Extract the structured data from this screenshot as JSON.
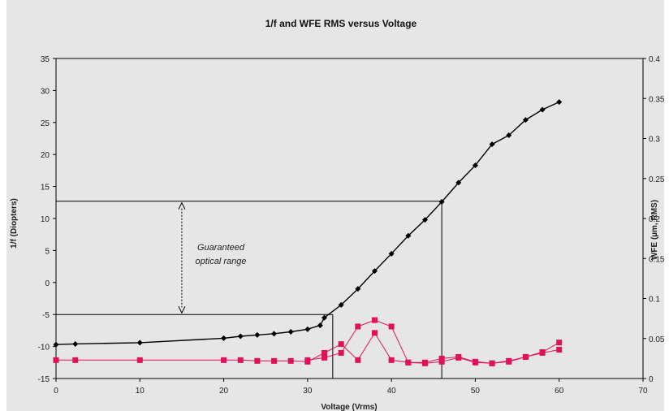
{
  "chart_data": {
    "type": "line",
    "title": "1/f and WFE RMS versus Voltage",
    "xlabel": "Voltage (Vrms)",
    "ylabel_left": "1/f (Diopters)",
    "ylabel_right": "WFE (µm, RMS)",
    "xlim": [
      0,
      70
    ],
    "ylim_left": [
      -15,
      35
    ],
    "ylim_right": [
      0,
      0.4
    ],
    "x_ticks": [
      0,
      10,
      20,
      30,
      40,
      50,
      60,
      70
    ],
    "y_left_ticks": [
      -15,
      -10,
      -5,
      0,
      5,
      10,
      15,
      20,
      25,
      30,
      35
    ],
    "y_right_ticks": [
      0,
      0.05,
      0.1,
      0.15,
      0.2,
      0.25,
      0.3,
      0.35,
      0.4
    ],
    "grid": false,
    "background": "#e6e6e6",
    "series": [
      {
        "axis": "left",
        "color": "#000000",
        "marker": "diamond",
        "x": [
          0,
          2.3,
          10,
          20,
          22,
          24,
          26,
          28,
          30,
          31.5,
          32,
          34,
          36,
          38,
          40,
          42,
          44,
          46,
          48,
          50,
          52,
          54,
          56,
          58,
          60
        ],
        "y": [
          -9.7,
          -9.6,
          -9.4,
          -8.7,
          -8.4,
          -8.2,
          -8.0,
          -7.7,
          -7.3,
          -6.7,
          -5.5,
          -3.5,
          -1.0,
          1.8,
          4.5,
          7.3,
          9.8,
          12.6,
          15.6,
          18.3,
          21.6,
          23.0,
          25.4,
          27.0,
          28.2
        ]
      },
      {
        "axis": "right",
        "color": "#e0105a",
        "marker": "square",
        "x": [
          0,
          2.3,
          10,
          20,
          22,
          24,
          26,
          28,
          30,
          32,
          34,
          36,
          38,
          40,
          42,
          44,
          46,
          48,
          50,
          52,
          54,
          56,
          58,
          60
        ],
        "y": [
          0.023,
          0.023,
          0.023,
          0.023,
          0.023,
          0.022,
          0.022,
          0.022,
          0.021,
          0.032,
          0.043,
          0.023,
          0.057,
          0.023,
          0.02,
          0.02,
          0.025,
          0.027,
          0.021,
          0.019,
          0.022,
          0.027,
          0.032,
          0.036
        ]
      },
      {
        "axis": "right",
        "color": "#e0105a",
        "marker": "square",
        "x": [
          30,
          32,
          34,
          36,
          38,
          40,
          42,
          44,
          46,
          48,
          50,
          52,
          54,
          56,
          58,
          60
        ],
        "y": [
          0.023,
          0.026,
          0.032,
          0.065,
          0.073,
          0.065,
          0.02,
          0.019,
          0.021,
          0.026,
          0.02,
          0.019,
          0.021,
          0.027,
          0.033,
          0.045
        ]
      }
    ],
    "reference_lines": {
      "lower_level_y": -5,
      "lower_level_x": 33,
      "upper_level_y": 12.7,
      "upper_level_x": 46,
      "range_arrow_x": 15
    },
    "annotation": [
      "Guaranteed",
      "optical range"
    ]
  }
}
